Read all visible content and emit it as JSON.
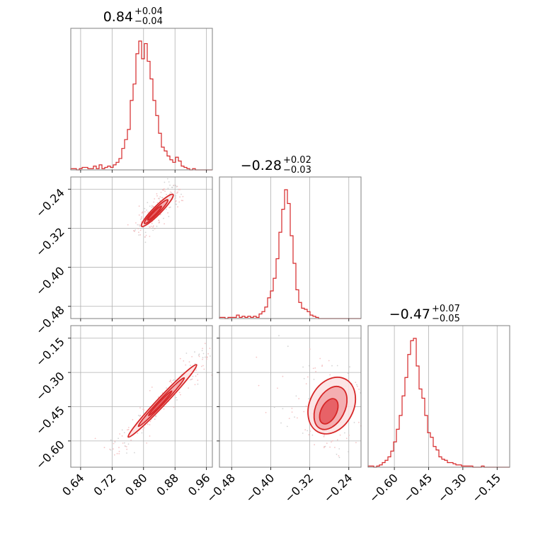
{
  "chart_data": {
    "type": "corner",
    "color": "#d62728",
    "grid": true,
    "parameters": [
      {
        "title_value": "0.84",
        "err_plus": "+0.04",
        "err_minus": "−0.04",
        "range": [
          0.615,
          0.975
        ],
        "ticks": [
          0.64,
          0.72,
          0.8,
          0.88,
          0.96
        ],
        "tick_labels": [
          "0.64",
          "0.72",
          "0.80",
          "0.88",
          "0.96"
        ],
        "hist": {
          "edges_start": 0.615,
          "bin_width": 0.0072,
          "counts": [
            1,
            1,
            0,
            1,
            2,
            2,
            1,
            1,
            3,
            1,
            4,
            1,
            2,
            3,
            2,
            4,
            6,
            9,
            17,
            24,
            32,
            55,
            68,
            92,
            102,
            88,
            100,
            86,
            72,
            55,
            43,
            29,
            18,
            15,
            11,
            8,
            6,
            10,
            7,
            3,
            2,
            1,
            0,
            1,
            0,
            0,
            0,
            0,
            0,
            0
          ]
        }
      },
      {
        "title_value": "−0.28",
        "err_plus": "+0.02",
        "err_minus": "−0.03",
        "range": [
          -0.505,
          -0.215
        ],
        "ticks": [
          -0.48,
          -0.4,
          -0.32,
          -0.24
        ],
        "tick_labels": [
          "−0.48",
          "−0.40",
          "−0.32",
          "−0.24"
        ],
        "hist": {
          "edges_start": -0.505,
          "bin_width": 0.0058,
          "counts": [
            1,
            1,
            0,
            1,
            1,
            1,
            3,
            1,
            2,
            1,
            2,
            1,
            2,
            1,
            4,
            6,
            10,
            18,
            24,
            35,
            52,
            75,
            95,
            112,
            100,
            72,
            48,
            25,
            14,
            9,
            8,
            6,
            3,
            2,
            1,
            0,
            0,
            0,
            0,
            0,
            0,
            0,
            0,
            0,
            0,
            0,
            0,
            0,
            0,
            0
          ]
        }
      },
      {
        "title_value": "−0.47",
        "err_plus": "+0.07",
        "err_minus": "−0.05",
        "range": [
          -0.715,
          -0.095
        ],
        "ticks": [
          -0.6,
          -0.45,
          -0.3,
          -0.15
        ],
        "tick_labels": [
          "−0.60",
          "−0.45",
          "−0.30",
          "−0.15"
        ],
        "hist": {
          "edges_start": -0.715,
          "bin_width": 0.0124,
          "counts": [
            1,
            1,
            0,
            1,
            2,
            4,
            6,
            9,
            14,
            22,
            33,
            45,
            62,
            78,
            98,
            110,
            112,
            88,
            68,
            60,
            45,
            30,
            26,
            18,
            15,
            9,
            7,
            6,
            4,
            4,
            3,
            2,
            2,
            1,
            1,
            1,
            1,
            0,
            0,
            0,
            1,
            0,
            0,
            0,
            0,
            0,
            0,
            0,
            0,
            0
          ]
        }
      }
    ],
    "pairs": [
      {
        "x_param": 0,
        "y_param": 1,
        "ridge": [
          [
            0.8,
            -0.312
          ],
          [
            0.87,
            -0.255
          ]
        ],
        "spread": 0.012,
        "level_widths": [
          0.85,
          0.55,
          0.3
        ],
        "level_lengths": [
          1.0,
          0.7,
          0.35
        ],
        "center_frac": 0.35
      },
      {
        "x_param": 0,
        "y_param": 2,
        "ridge": [
          [
            0.766,
            -0.574
          ],
          [
            0.93,
            -0.275
          ]
        ],
        "spread": 0.012,
        "level_widths": [
          0.9,
          0.55,
          0.3
        ],
        "level_lengths": [
          1.0,
          0.65,
          0.3
        ],
        "center_frac": 0.45
      },
      {
        "x_param": 1,
        "y_param": 2,
        "ridge": [
          [
            -0.3,
            -0.55
          ],
          [
            -0.25,
            -0.34
          ]
        ],
        "spread": 0.045,
        "level_widths": [
          1.0,
          0.65,
          0.35
        ],
        "level_lengths": [
          1.0,
          0.75,
          0.4
        ],
        "center_frac": 0.3
      }
    ]
  }
}
